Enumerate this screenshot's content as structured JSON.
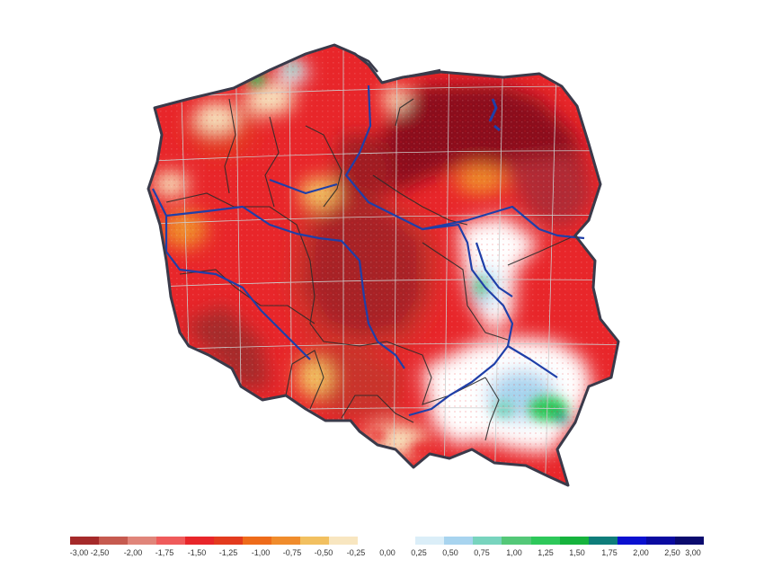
{
  "legend": {
    "classes": [
      {
        "color": "#a52a2a"
      },
      {
        "color": "#c65a4f"
      },
      {
        "color": "#e0857a"
      },
      {
        "color": "#ef5b5b"
      },
      {
        "color": "#e8262a"
      },
      {
        "color": "#e33b1e"
      },
      {
        "color": "#ee6b1a"
      },
      {
        "color": "#f08c2c"
      },
      {
        "color": "#f2c060"
      },
      {
        "color": "#f8e6c0"
      },
      {
        "color": "#ffffff"
      },
      {
        "color": "#ffffff"
      },
      {
        "color": "#dbeef8"
      },
      {
        "color": "#a8d4ef"
      },
      {
        "color": "#78d4be"
      },
      {
        "color": "#54c878"
      },
      {
        "color": "#2ec85a"
      },
      {
        "color": "#16b33d"
      },
      {
        "color": "#0e7d7a"
      },
      {
        "color": "#0a10d0"
      },
      {
        "color": "#0a0aa0"
      },
      {
        "color": "#0b0b6e"
      }
    ],
    "tick_labels": [
      "-3,00",
      "-2,50",
      "-2,00",
      "-1,75",
      "-1,50",
      "-1,25",
      "-1,00",
      "-0,75",
      "-0,50",
      "-0,25",
      "0,00",
      "0,25",
      "0,50",
      "0,75",
      "1,00",
      "1,25",
      "1,50",
      "1,75",
      "2,00",
      "2,50",
      "3,00"
    ]
  },
  "map": {
    "colors": {
      "border": "#3a3a4a",
      "river": "#1f3fa8",
      "region_lines": "#2b2b2b",
      "grid": "#cccccc"
    }
  }
}
